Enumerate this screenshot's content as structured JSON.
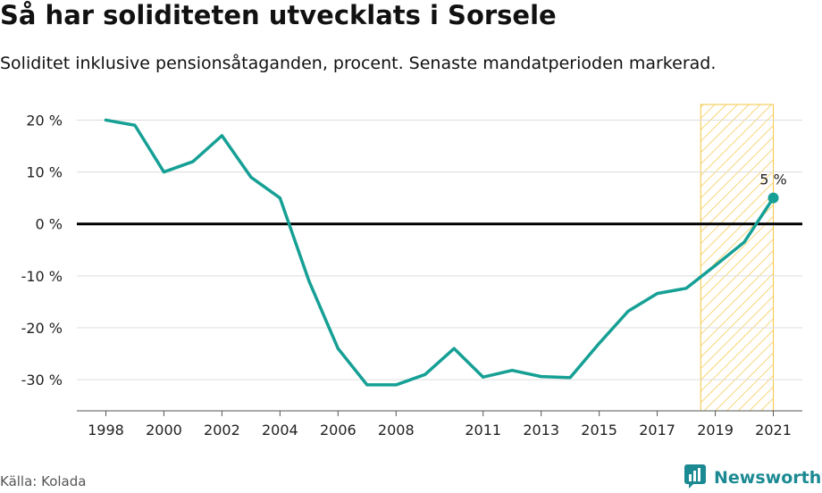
{
  "title": "Så har soliditeten utvecklats i Sorsele",
  "subtitle": "Soliditet inklusive pensionsåtaganden, procent. Senaste mandatperioden markerad.",
  "source": "Källa: Kolada",
  "brand": {
    "name": "Newsworthy",
    "icon": "newsworthy-logo-icon",
    "color": "#1c8a93"
  },
  "colors": {
    "line": "#16a095",
    "highlight": "#f5c542",
    "zero": "#000000",
    "grid": "#dddddd"
  },
  "chart_data": {
    "type": "line",
    "x": [
      1998,
      1999,
      2000,
      2001,
      2002,
      2003,
      2004,
      2005,
      2006,
      2007,
      2008,
      2009,
      2010,
      2011,
      2012,
      2013,
      2014,
      2015,
      2016,
      2017,
      2018,
      2019,
      2020,
      2021
    ],
    "series": [
      {
        "values": [
          20,
          19,
          10,
          12,
          17,
          9,
          5,
          -11,
          -24,
          -31,
          -31,
          -29,
          -24,
          -29.5,
          -28.2,
          -29.4,
          -29.6,
          -23,
          -16.8,
          -13.4,
          -12.4,
          -8,
          -3.5,
          5
        ]
      }
    ],
    "xticks": [
      "1998",
      "2000",
      "2002",
      "2004",
      "2006",
      "2008",
      "2011",
      "2013",
      "2015",
      "2017",
      "2019",
      "2021"
    ],
    "yticks": [
      20,
      10,
      0,
      -10,
      -20,
      -30
    ],
    "ytick_labels": [
      "20 %",
      "10 %",
      "0 %",
      "-10 %",
      "-20 %",
      "-30 %"
    ],
    "xlim": [
      1997,
      2022
    ],
    "ylim": [
      -36,
      23
    ],
    "highlight_range": [
      2018.5,
      2021
    ],
    "last_point_label": "5 %",
    "grid": true
  }
}
